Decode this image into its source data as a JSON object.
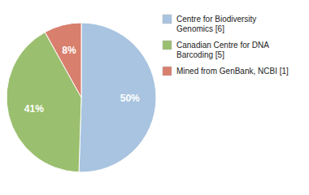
{
  "chart_data": {
    "type": "pie",
    "categories": [
      "Centre for Biodiversity\nGenomics [6]",
      "Canadian Centre for DNA\nBarcoding [5]",
      "Mined from GenBank, NCBI [1]"
    ],
    "values": [
      50,
      41,
      8
    ],
    "value_labels": [
      "50%",
      "41%",
      "8%"
    ],
    "colors": [
      "#a8c4e0",
      "#9abf6e",
      "#d97f6e"
    ],
    "data_labels": true,
    "legend": "right"
  }
}
